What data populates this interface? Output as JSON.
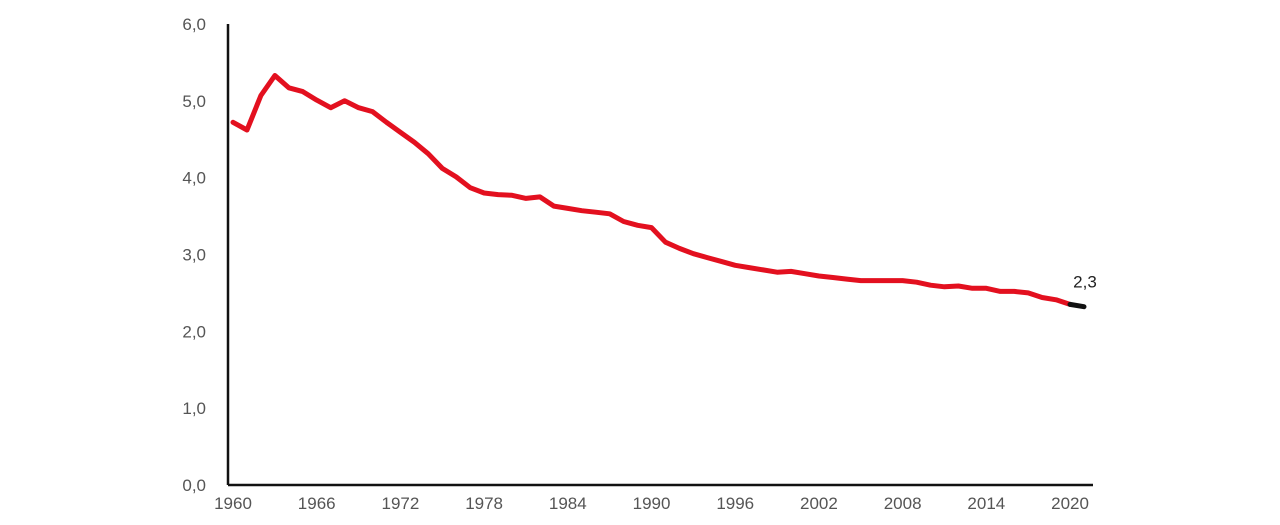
{
  "chart_data": {
    "type": "line",
    "title": "",
    "xlabel": "",
    "ylabel": "",
    "xlim": [
      1960,
      2021
    ],
    "ylim": [
      0,
      6
    ],
    "x_ticks": [
      1960,
      1966,
      1972,
      1978,
      1984,
      1990,
      1996,
      2002,
      2008,
      2014,
      2020
    ],
    "x_tick_labels": [
      "1960",
      "1966",
      "1972",
      "1978",
      "1984",
      "1990",
      "1996",
      "2002",
      "2008",
      "2014",
      "2020"
    ],
    "y_ticks": [
      0,
      1,
      2,
      3,
      4,
      5,
      6
    ],
    "y_tick_labels": [
      "0,0",
      "1,0",
      "2,0",
      "3,0",
      "4,0",
      "5,0",
      "6,0"
    ],
    "grid": false,
    "series": [
      {
        "color": "#e3101f",
        "last_segment_color": "#111111",
        "x": [
          1960,
          1961,
          1962,
          1963,
          1964,
          1965,
          1966,
          1967,
          1968,
          1969,
          1970,
          1971,
          1972,
          1973,
          1974,
          1975,
          1976,
          1977,
          1978,
          1979,
          1980,
          1981,
          1982,
          1983,
          1984,
          1985,
          1986,
          1987,
          1988,
          1989,
          1990,
          1991,
          1992,
          1993,
          1994,
          1995,
          1996,
          1997,
          1998,
          1999,
          2000,
          2001,
          2002,
          2003,
          2004,
          2005,
          2006,
          2007,
          2008,
          2009,
          2010,
          2011,
          2012,
          2013,
          2014,
          2015,
          2016,
          2017,
          2018,
          2019,
          2020,
          2021
        ],
        "values": [
          4.72,
          4.62,
          5.07,
          5.33,
          5.17,
          5.12,
          5.01,
          4.91,
          5.0,
          4.91,
          4.86,
          4.72,
          4.59,
          4.46,
          4.31,
          4.12,
          4.01,
          3.87,
          3.8,
          3.78,
          3.77,
          3.73,
          3.75,
          3.63,
          3.6,
          3.57,
          3.55,
          3.53,
          3.43,
          3.38,
          3.35,
          3.16,
          3.08,
          3.01,
          2.96,
          2.91,
          2.86,
          2.83,
          2.8,
          2.77,
          2.78,
          2.75,
          2.72,
          2.7,
          2.68,
          2.66,
          2.66,
          2.66,
          2.66,
          2.64,
          2.6,
          2.58,
          2.59,
          2.56,
          2.56,
          2.52,
          2.52,
          2.5,
          2.44,
          2.41,
          2.35,
          2.32
        ]
      }
    ],
    "annotations": [
      {
        "x": 2021,
        "y": 2.32,
        "text": "2,3"
      }
    ]
  }
}
